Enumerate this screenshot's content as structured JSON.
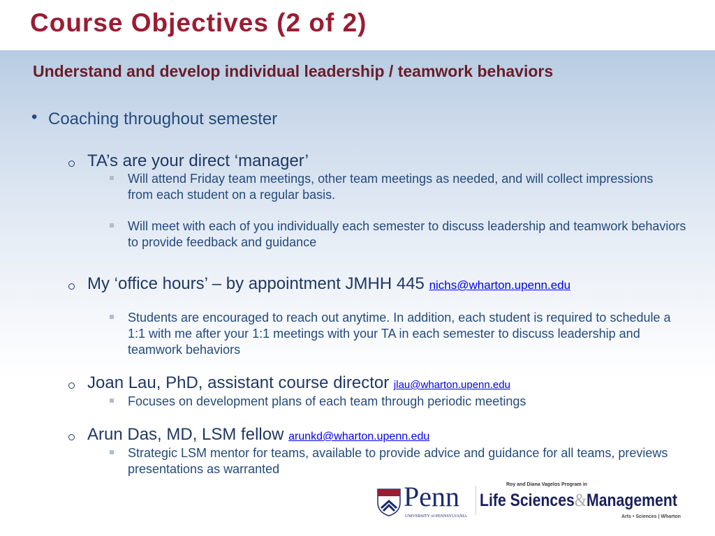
{
  "slide": {
    "title": "Course Objectives (2 of 2)",
    "subtitle": "Understand and develop individual leadership / teamwork behaviors",
    "bullet": "Coaching throughout semester",
    "items": [
      {
        "heading": "TA’s are your direct ‘manager’",
        "link": "",
        "subs": [
          "Will attend Friday team meetings, other team meetings as needed, and will collect impressions from each student on a regular basis.",
          "Will meet with each of you individually each semester to discuss leadership and teamwork behaviors to provide feedback and guidance"
        ]
      },
      {
        "heading": "My ‘office hours’ – by appointment JMHH 445",
        "link": "nichs@wharton.upenn.edu",
        "subs": [
          "Students are encouraged to reach out anytime. In addition, each student is required to schedule a 1:1 with me after your 1:1 meetings with your TA in each semester to discuss leadership and teamwork behaviors"
        ]
      },
      {
        "heading": "Joan Lau, PhD, assistant course director",
        "link": "jlau@wharton.upenn.edu",
        "subs": [
          "Focuses on development plans of each team through periodic meetings"
        ]
      },
      {
        "heading": "Arun Das, MD, LSM fellow",
        "link": "arunkd@wharton.upenn.edu",
        "subs": [
          "Strategic LSM mentor for teams, available to provide advice and guidance for all teams, previews presentations as warranted"
        ]
      }
    ]
  },
  "logos": {
    "penn": "Penn",
    "penn_sub": "UNIVERSITY of PENNSYLVANIA",
    "lsm_top": "Roy and Diana Vagelos Program in",
    "lsm_main_1": "Life Sciences",
    "lsm_amp": "&",
    "lsm_main_2": "Management",
    "lsm_bottom": "Arts • Sciences | Wharton"
  },
  "colors": {
    "title": "#9b1c33",
    "subtitle": "#6b1d29",
    "text": "#1f3864",
    "link": "#0000ee"
  }
}
